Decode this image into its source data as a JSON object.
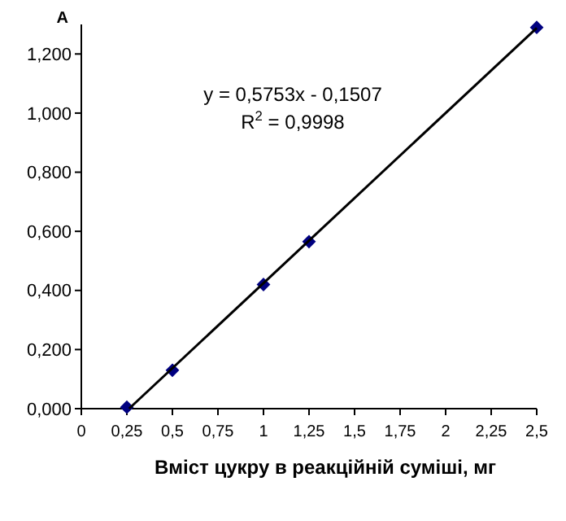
{
  "chart_data": {
    "type": "scatter",
    "xlabel": "Вміст цукру в реакційній суміші, мг",
    "ylabel": "А",
    "xlim": [
      0,
      2.5
    ],
    "ylim": [
      0,
      1.3
    ],
    "xticks": [
      0,
      {
        "value": 0.25,
        "label": "0,25"
      },
      {
        "value": 0.5,
        "label": "0,5"
      },
      {
        "value": 0.75,
        "label": "0,75"
      },
      1,
      {
        "value": 1.25,
        "label": "1,25"
      },
      {
        "value": 1.5,
        "label": "1,5"
      },
      {
        "value": 1.75,
        "label": "1,75"
      },
      2,
      {
        "value": 2.25,
        "label": "2,25"
      },
      {
        "value": 2.5,
        "label": "2,5"
      }
    ],
    "yticks": [
      {
        "value": 0,
        "label": "0,000"
      },
      {
        "value": 0.2,
        "label": "0,200"
      },
      {
        "value": 0.4,
        "label": "0,400"
      },
      {
        "value": 0.6,
        "label": "0,600"
      },
      {
        "value": 0.8,
        "label": "0,800"
      },
      {
        "value": 1,
        "label": "1,000"
      },
      {
        "value": 1.2,
        "label": "1,200"
      }
    ],
    "grid": false,
    "series": [
      {
        "marker": "diamond",
        "color": "#000080",
        "x": [
          0.25,
          0.5,
          1,
          1.25,
          2.5
        ],
        "values": [
          0.005,
          0.13,
          0.42,
          0.565,
          1.29
        ]
      },
      {
        "type": "line",
        "color": "#000000",
        "x": [
          0.262,
          2.5
        ],
        "values": [
          0,
          1.288
        ],
        "line_style": "solid"
      }
    ],
    "annotations": [
      {
        "text": "y = 0,5753x - 0,1507"
      },
      {
        "text": "R$^{2}$ = 0,9998"
      }
    ]
  }
}
